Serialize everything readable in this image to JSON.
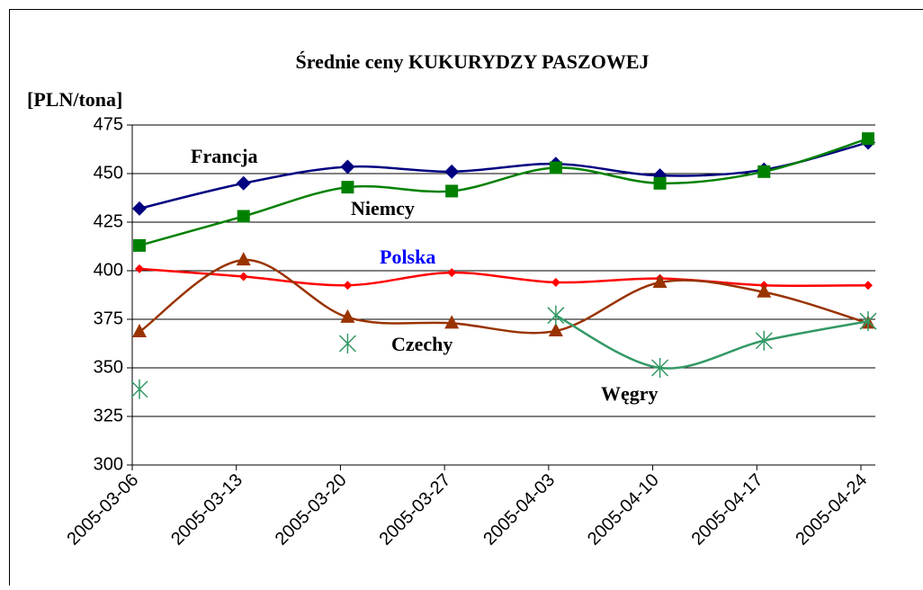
{
  "chart_data": {
    "type": "line",
    "title": "Średnie ceny KUKURYDZY PASZOWEJ",
    "y_label": "[PLN/tona]",
    "categories": [
      "2005-03-06",
      "2005-03-13",
      "2005-03-20",
      "2005-03-27",
      "2005-04-03",
      "2005-04-10",
      "2005-04-17",
      "2005-04-24"
    ],
    "series": [
      {
        "name": "Francja",
        "color": "#000080",
        "marker": "diamond",
        "values": [
          432,
          445,
          453.5,
          451,
          455,
          449,
          452,
          466
        ]
      },
      {
        "name": "Niemcy",
        "color": "#008000",
        "marker": "square",
        "values": [
          413,
          428,
          443,
          441,
          453,
          445,
          451,
          468
        ]
      },
      {
        "name": "Polska",
        "color": "#ff0000",
        "marker": "small-diamond",
        "values": [
          401,
          397,
          392.5,
          399,
          394,
          396,
          392.5,
          392.5
        ]
      },
      {
        "name": "Czechy",
        "color": "#993300",
        "marker": "triangle",
        "values": [
          368.5,
          405.5,
          376,
          373,
          369,
          394,
          389,
          373
        ]
      },
      {
        "name": "Węgry",
        "color": "#339966",
        "marker": "asterisk",
        "values": [
          339,
          null,
          362.5,
          null,
          377,
          350,
          364,
          374
        ]
      }
    ],
    "annotations": [
      {
        "text": "Francja",
        "color": "#000000"
      },
      {
        "text": "Niemcy",
        "color": "#000000"
      },
      {
        "text": "Polska",
        "color": "#0000ff"
      },
      {
        "text": "Czechy",
        "color": "#000000"
      },
      {
        "text": "Węgry",
        "color": "#000000"
      }
    ],
    "ylim": [
      300,
      475
    ],
    "yticks": [
      300,
      325,
      350,
      375,
      400,
      425,
      450,
      475
    ],
    "grid": true
  }
}
